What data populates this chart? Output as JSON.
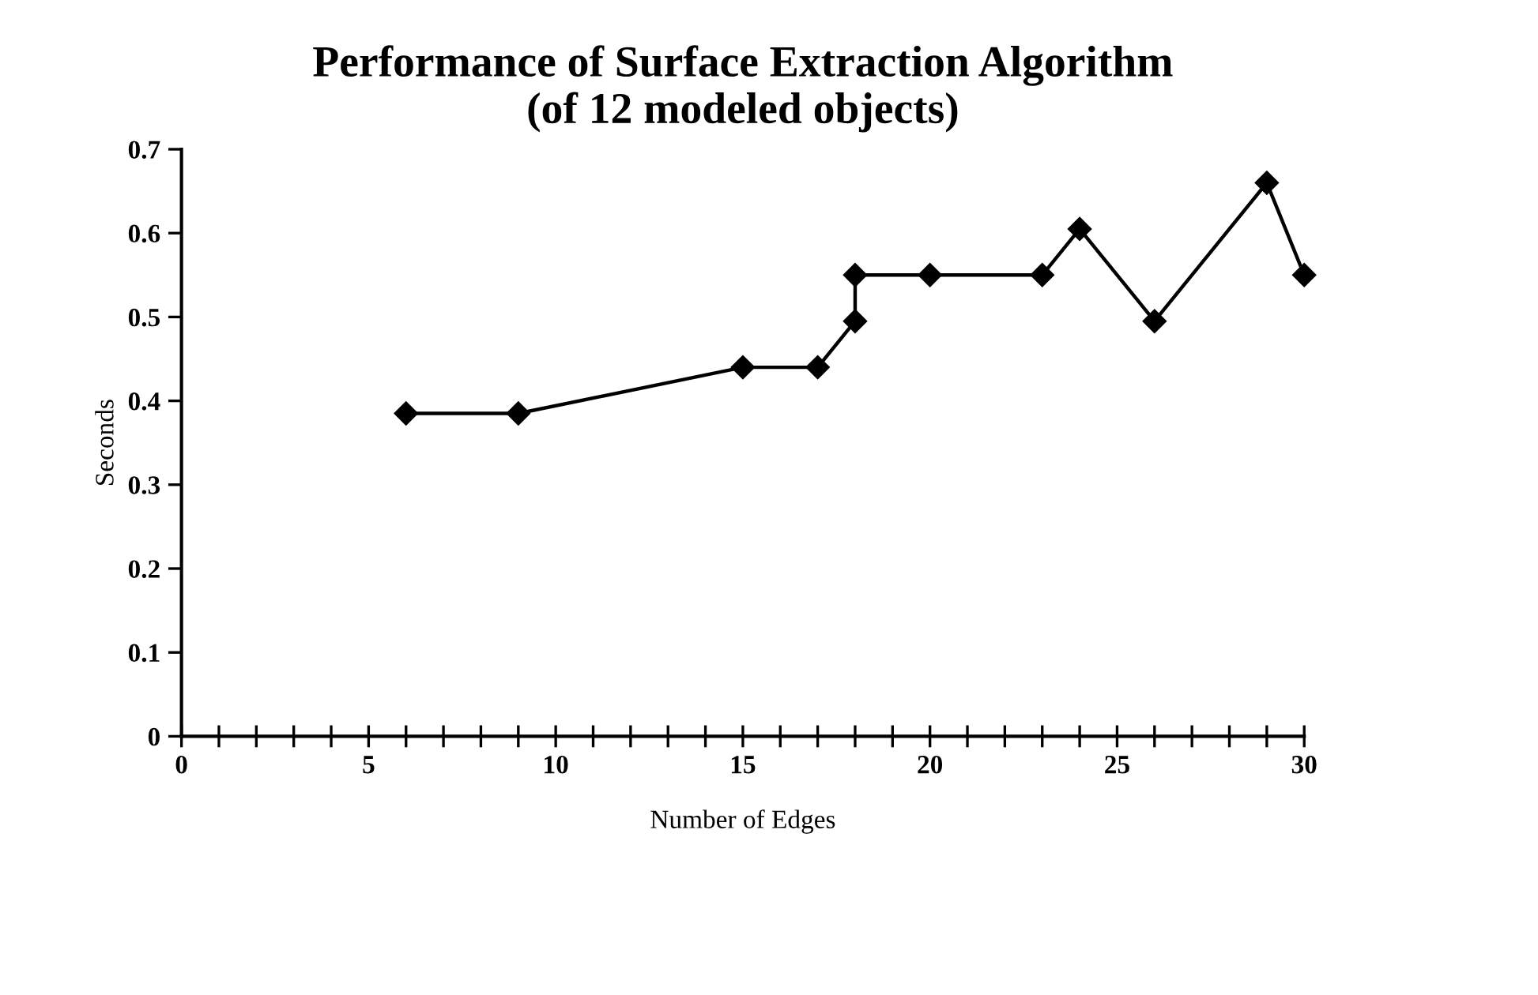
{
  "chart_data": {
    "type": "line",
    "title": "Performance of Surface Extraction Algorithm\n(of 12 modeled objects)",
    "xlabel": "Number of Edges",
    "ylabel": "Seconds",
    "x": [
      6,
      9,
      15,
      17,
      18,
      18,
      20,
      23,
      24,
      26,
      29,
      30
    ],
    "series": [
      {
        "color": "#000000",
        "values": [
          0.385,
          0.385,
          0.44,
          0.44,
          0.495,
          0.55,
          0.55,
          0.55,
          0.605,
          0.495,
          0.66,
          0.55
        ]
      }
    ],
    "xlim": [
      0,
      30
    ],
    "xticks": [
      0,
      {
        "value": 1,
        "label": null
      },
      {
        "value": 2,
        "label": null
      },
      {
        "value": 3,
        "label": null
      },
      {
        "value": 4,
        "label": null
      },
      5,
      {
        "value": 6,
        "label": null
      },
      {
        "value": 7,
        "label": null
      },
      {
        "value": 8,
        "label": null
      },
      {
        "value": 9,
        "label": null
      },
      10,
      {
        "value": 11,
        "label": null
      },
      {
        "value": 12,
        "label": null
      },
      {
        "value": 13,
        "label": null
      },
      {
        "value": 14,
        "label": null
      },
      15,
      {
        "value": 16,
        "label": null
      },
      {
        "value": 17,
        "label": null
      },
      {
        "value": 18,
        "label": null
      },
      {
        "value": 19,
        "label": null
      },
      20,
      {
        "value": 21,
        "label": null
      },
      {
        "value": 22,
        "label": null
      },
      {
        "value": 23,
        "label": null
      },
      {
        "value": 24,
        "label": null
      },
      25,
      {
        "value": 26,
        "label": null
      },
      {
        "value": 27,
        "label": null
      },
      {
        "value": 28,
        "label": null
      },
      {
        "value": 29,
        "label": null
      },
      30
    ],
    "ylim": [
      0,
      0.7
    ],
    "yticks": [
      0,
      0.1,
      0.2,
      0.3,
      0.4,
      0.5,
      0.6,
      0.7
    ],
    "grid": false,
    "legend": false,
    "marker": "diamond",
    "line_style": "solid"
  }
}
